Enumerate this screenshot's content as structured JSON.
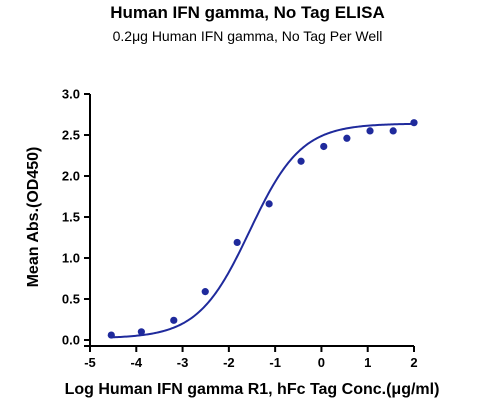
{
  "chart_data": {
    "type": "scatter",
    "title": "Human IFN gamma, No Tag ELISA",
    "subtitle": "0.2μg Human IFN gamma, No Tag Per Well",
    "xlabel": "Log Human IFN gamma R1, hFc Tag Conc.(μg/ml)",
    "ylabel": "Mean Abs.(OD450)",
    "xlim": [
      -5,
      2
    ],
    "ylim": [
      0,
      3.0
    ],
    "x_ticks": [
      "-5",
      "-4",
      "-3",
      "-2",
      "-1",
      "0",
      "1",
      "2"
    ],
    "y_ticks": [
      "0.0",
      "0.5",
      "1.0",
      "1.5",
      "2.0",
      "2.5",
      "3.0"
    ],
    "grid": false,
    "marker_color": "#1f2a9c",
    "line_color": "#1f2a9c",
    "series": [
      {
        "x": [
          -4.54,
          -3.89,
          -3.19,
          -2.51,
          -1.82,
          -1.13,
          -0.44,
          0.05,
          0.55,
          1.05,
          1.55,
          2.0
        ],
        "y": [
          0.06,
          0.1,
          0.24,
          0.59,
          1.19,
          1.66,
          2.18,
          2.36,
          2.46,
          2.55,
          2.55,
          2.65
        ]
      }
    ],
    "fit_curve": {
      "type": "4PL",
      "bottom": 0.02,
      "top": 2.64,
      "log_ec50": -1.55,
      "hill_slope": 0.78,
      "x_range": [
        -4.54,
        2.0
      ]
    }
  }
}
